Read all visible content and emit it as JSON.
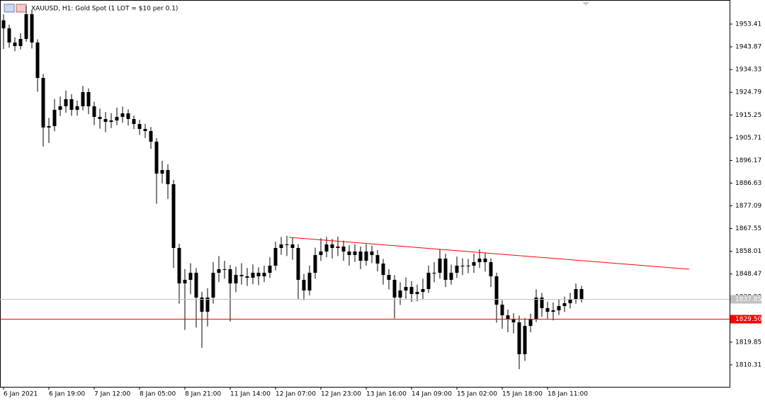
{
  "chart_data": {
    "type": "candlestick",
    "title": "XAUUSD, H1:  Gold Spot (1 LOT = $10 per 0.1)",
    "color": "#000000",
    "categories": [
      "6 Jan 2021",
      null,
      null,
      null,
      null,
      null,
      null,
      null,
      "6 Jan 19:00",
      null,
      null,
      null,
      null,
      null,
      null,
      null,
      "7 Jan 12:00",
      null,
      null,
      null,
      null,
      null,
      null,
      null,
      "8 Jan 05:00",
      null,
      null,
      null,
      null,
      null,
      null,
      null,
      "8 Jan 21:00",
      null,
      null,
      null,
      null,
      null,
      null,
      null,
      "11 Jan 14:00",
      null,
      null,
      null,
      null,
      null,
      null,
      null,
      "12 Jan 07:00",
      null,
      null,
      null,
      null,
      null,
      null,
      null,
      "12 Jan 23:00",
      null,
      null,
      null,
      null,
      null,
      null,
      null,
      "13 Jan 16:00",
      null,
      null,
      null,
      null,
      null,
      null,
      null,
      "14 Jan 09:00",
      null,
      null,
      null,
      null,
      null,
      null,
      null,
      "15 Jan 02:00",
      null,
      null,
      null,
      null,
      null,
      null,
      null,
      "15 Jan 18:00",
      null,
      null,
      null,
      null,
      null,
      null,
      null,
      "18 Jan 11:00",
      null,
      null,
      null,
      null,
      null,
      null
    ],
    "open": [
      1955.0,
      1951.63,
      1945.68,
      1944.19,
      1947.17,
      1957.58,
      1945.68,
      1930.8,
      1909.98,
      1910.57,
      1917.42,
      1918.9,
      1921.88,
      1917.42,
      1918.9,
      1924.85,
      1918.9,
      1914.44,
      1913.55,
      1912.36,
      1912.95,
      1914.44,
      1915.93,
      1913.55,
      1911.47,
      1909.38,
      1908.49,
      1904.03,
      1890.64,
      1892.13,
      1886.18,
      1859.4,
      1844.53,
      1846.02,
      1848.99,
      1838.58,
      1832.63,
      1838.58,
      1848.99,
      1850.48,
      1850.48,
      1844.53,
      1848.1,
      1847.5,
      1846.91,
      1848.99,
      1847.5,
      1848.99,
      1851.97,
      1859.4,
      1860.89,
      1860.89,
      1859.4,
      1846.02,
      1841.55,
      1848.99,
      1856.43,
      1857.92,
      1860.89,
      1859.4,
      1860.0,
      1857.92,
      1856.43,
      1857.92,
      1854.05,
      1857.92,
      1856.43,
      1852.86,
      1848.1,
      1846.02,
      1838.58,
      1841.55,
      1843.04,
      1840.07,
      1840.96,
      1842.15,
      1848.99,
      1848.99,
      1854.94,
      1846.02,
      1848.99,
      1851.97,
      1851.97,
      1851.97,
      1853.45,
      1854.94,
      1853.45,
      1847.5,
      1835.6,
      1831.14,
      1829.65,
      1828.17,
      1814.78,
      1826.68,
      1829.65,
      1838.58,
      1834.12,
      1832.63,
      1833.22,
      1835.01,
      1836.2,
      1837.98,
      1842.15
    ],
    "high": [
      1957.5,
      1953.2,
      1947.9,
      1949.6,
      1961.0,
      1959.3,
      1947.0,
      1932.5,
      1914.0,
      1922.0,
      1923.0,
      1925.5,
      1924.0,
      1921.3,
      1927.5,
      1926.4,
      1920.8,
      1917.9,
      1916.5,
      1916.0,
      1918.3,
      1918.8,
      1917.6,
      1915.0,
      1913.2,
      1911.5,
      1910.2,
      1905.5,
      1896.0,
      1894.5,
      1888.0,
      1861.2,
      1850.5,
      1853.0,
      1851.0,
      1841.0,
      1842.5,
      1853.5,
      1856.0,
      1854.0,
      1852.3,
      1851.5,
      1853.0,
      1851.0,
      1852.5,
      1851.3,
      1852.0,
      1855.5,
      1862.0,
      1864.0,
      1864.5,
      1863.8,
      1861.0,
      1848.5,
      1852.0,
      1859.5,
      1863.5,
      1864.0,
      1863.2,
      1864.2,
      1862.5,
      1860.5,
      1861.0,
      1860.0,
      1861.0,
      1860.4,
      1858.5,
      1854.8,
      1850.5,
      1848.0,
      1845.0,
      1847.0,
      1845.5,
      1844.0,
      1846.5,
      1852.0,
      1853.5,
      1859.0,
      1857.0,
      1852.4,
      1855.8,
      1855.0,
      1854.8,
      1857.0,
      1858.8,
      1857.5,
      1855.0,
      1849.0,
      1837.5,
      1833.5,
      1832.0,
      1831.0,
      1830.0,
      1831.8,
      1842.0,
      1840.5,
      1836.8,
      1836.5,
      1838.0,
      1839.0,
      1840.5,
      1844.5,
      1843.5
    ],
    "low": [
      1943.0,
      1943.5,
      1942.0,
      1942.8,
      1946.0,
      1943.2,
      1925.0,
      1902.0,
      1903.5,
      1908.4,
      1914.8,
      1916.2,
      1914.9,
      1915.0,
      1917.2,
      1915.6,
      1911.0,
      1909.5,
      1908.0,
      1909.8,
      1911.0,
      1912.0,
      1910.8,
      1909.3,
      1906.9,
      1905.6,
      1901.0,
      1878.0,
      1886.5,
      1880.0,
      1851.0,
      1836.0,
      1825.0,
      1840.0,
      1826.0,
      1817.5,
      1826.5,
      1836.0,
      1845.0,
      1846.5,
      1828.5,
      1840.8,
      1844.0,
      1843.5,
      1844.2,
      1843.8,
      1845.0,
      1846.8,
      1850.0,
      1856.5,
      1856.0,
      1854.5,
      1838.0,
      1837.5,
      1839.5,
      1846.5,
      1854.0,
      1855.5,
      1855.0,
      1856.0,
      1854.0,
      1852.0,
      1853.5,
      1850.5,
      1852.0,
      1853.0,
      1849.6,
      1844.0,
      1842.0,
      1829.8,
      1835.5,
      1838.0,
      1836.8,
      1837.0,
      1837.9,
      1840.5,
      1845.0,
      1846.5,
      1843.0,
      1844.0,
      1846.8,
      1848.0,
      1848.8,
      1849.0,
      1851.0,
      1849.5,
      1843.0,
      1828.0,
      1825.5,
      1824.0,
      1823.5,
      1808.5,
      1812.0,
      1824.0,
      1828.3,
      1830.5,
      1829.5,
      1829.0,
      1831.2,
      1832.5,
      1834.0,
      1836.0,
      1836.5
    ],
    "close": [
      1951.63,
      1945.68,
      1944.19,
      1947.17,
      1957.58,
      1945.68,
      1930.8,
      1909.98,
      1910.57,
      1917.42,
      1918.9,
      1921.88,
      1917.42,
      1918.9,
      1924.85,
      1918.9,
      1914.44,
      1913.55,
      1912.36,
      1912.95,
      1914.44,
      1915.93,
      1913.55,
      1911.47,
      1909.38,
      1908.49,
      1904.03,
      1890.64,
      1892.13,
      1886.18,
      1859.4,
      1844.53,
      1846.02,
      1848.99,
      1838.58,
      1832.63,
      1838.58,
      1848.99,
      1850.48,
      1850.48,
      1844.53,
      1848.1,
      1847.5,
      1846.91,
      1848.99,
      1847.5,
      1848.99,
      1851.97,
      1859.4,
      1860.89,
      1860.89,
      1859.4,
      1846.02,
      1841.55,
      1848.99,
      1856.43,
      1857.92,
      1860.89,
      1859.4,
      1860.0,
      1857.92,
      1856.43,
      1857.92,
      1854.05,
      1857.92,
      1856.43,
      1852.86,
      1848.1,
      1846.02,
      1838.58,
      1841.55,
      1843.04,
      1840.07,
      1840.96,
      1842.15,
      1848.99,
      1848.99,
      1854.94,
      1846.02,
      1848.99,
      1851.97,
      1851.97,
      1851.97,
      1853.45,
      1854.94,
      1853.45,
      1847.5,
      1835.6,
      1831.14,
      1829.65,
      1828.17,
      1814.78,
      1826.68,
      1829.65,
      1838.58,
      1834.12,
      1832.63,
      1833.22,
      1835.01,
      1836.2,
      1837.98,
      1842.15,
      1837.85
    ],
    "xlim": [
      -0.625,
      128.125
    ],
    "ylim": [
      1801.09,
      1963.53
    ],
    "yticks": [
      1953.41,
      1943.87,
      1934.33,
      1924.79,
      1915.25,
      1905.71,
      1896.17,
      1886.63,
      1877.09,
      1867.55,
      1858.01,
      1848.47,
      1838.93,
      1819.85,
      1810.31
    ],
    "horizontal_lines": [
      {
        "value": 1837.85,
        "label": "1837.85",
        "color": "#c0c0c0"
      },
      {
        "value": 1829.5,
        "label": "1829.50",
        "color": "#ff0000"
      }
    ],
    "trend_line": {
      "x": [
        50.4,
        121
      ],
      "y": [
        1863.87,
        1850.48
      ],
      "color": "#ff0000"
    }
  }
}
